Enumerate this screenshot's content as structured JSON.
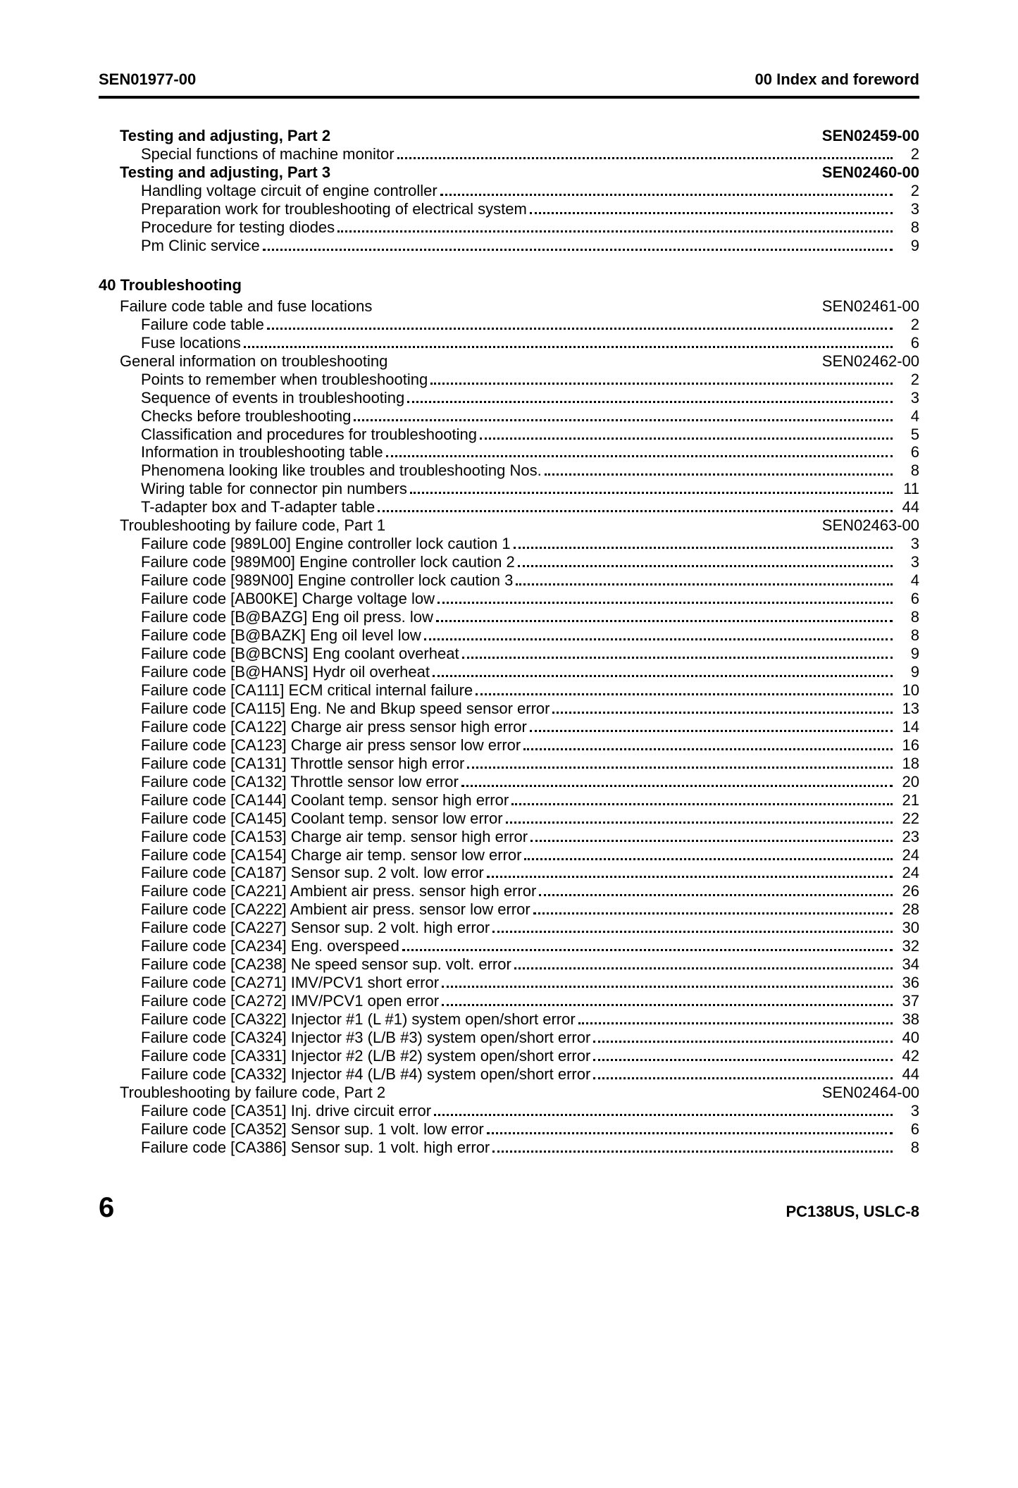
{
  "header": {
    "left": "SEN01977-00",
    "right": "00 Index and foreword"
  },
  "footer": {
    "page": "6",
    "model": "PC138US, USLC-8"
  },
  "sections": [
    {
      "title": "Testing and adjusting, Part 2",
      "code": "SEN02459-00",
      "indent": 1,
      "bold": true,
      "items": [
        {
          "label": "Special functions of machine monitor",
          "page": "2"
        }
      ]
    },
    {
      "title": "Testing and adjusting, Part 3",
      "code": "SEN02460-00",
      "indent": 1,
      "bold": true,
      "items": [
        {
          "label": "Handling voltage circuit of engine controller",
          "page": "2"
        },
        {
          "label": "Preparation work for troubleshooting of electrical system",
          "page": "3"
        },
        {
          "label": "Procedure for testing diodes",
          "page": "8"
        },
        {
          "label": "Pm Clinic service",
          "page": "9"
        }
      ]
    },
    {
      "chapter": "40 Troubleshooting"
    },
    {
      "title": "Failure code table and fuse locations",
      "code": "SEN02461-00",
      "indent": 1,
      "bold": false,
      "items": [
        {
          "label": "Failure code table",
          "page": "2"
        },
        {
          "label": "Fuse locations",
          "page": "6"
        }
      ]
    },
    {
      "title": "General information on troubleshooting",
      "code": "SEN02462-00",
      "indent": 1,
      "bold": false,
      "items": [
        {
          "label": "Points to remember when troubleshooting",
          "page": "2"
        },
        {
          "label": "Sequence of events in troubleshooting",
          "page": "3"
        },
        {
          "label": "Checks before troubleshooting",
          "page": "4"
        },
        {
          "label": "Classification and procedures for troubleshooting",
          "page": "5"
        },
        {
          "label": "Information in troubleshooting table",
          "page": "6"
        },
        {
          "label": "Phenomena looking like troubles and troubleshooting Nos.",
          "page": "8"
        },
        {
          "label": "Wiring table for connector pin numbers",
          "page": "11"
        },
        {
          "label": "T-adapter box and T-adapter table",
          "page": "44"
        }
      ]
    },
    {
      "title": "Troubleshooting by failure code, Part 1",
      "code": "SEN02463-00",
      "indent": 1,
      "bold": false,
      "items": [
        {
          "label": "Failure code [989L00] Engine controller lock caution 1",
          "page": "3"
        },
        {
          "label": "Failure code [989M00] Engine controller lock caution 2",
          "page": "3"
        },
        {
          "label": "Failure code [989N00] Engine controller lock caution 3",
          "page": "4"
        },
        {
          "label": "Failure code [AB00KE] Charge voltage low",
          "page": "6"
        },
        {
          "label": "Failure code [B@BAZG] Eng oil press. low",
          "page": "8"
        },
        {
          "label": "Failure code [B@BAZK] Eng oil level low",
          "page": "8"
        },
        {
          "label": "Failure code [B@BCNS] Eng coolant overheat",
          "page": "9"
        },
        {
          "label": "Failure code [B@HANS] Hydr oil overheat",
          "page": "9"
        },
        {
          "label": "Failure code [CA111] ECM critical internal failure",
          "page": "10"
        },
        {
          "label": "Failure code [CA115] Eng. Ne and Bkup speed sensor error",
          "page": "13"
        },
        {
          "label": "Failure code [CA122] Charge air press sensor high error",
          "page": "14"
        },
        {
          "label": "Failure code [CA123] Charge air press sensor low error",
          "page": "16"
        },
        {
          "label": "Failure code [CA131] Throttle sensor high error",
          "page": "18"
        },
        {
          "label": "Failure code [CA132] Throttle sensor low error",
          "page": "20"
        },
        {
          "label": "Failure code [CA144] Coolant temp. sensor high error",
          "page": "21"
        },
        {
          "label": "Failure code [CA145] Coolant temp. sensor low error",
          "page": "22"
        },
        {
          "label": "Failure code [CA153] Charge air temp. sensor high error",
          "page": "23"
        },
        {
          "label": "Failure code [CA154] Charge air temp. sensor low error",
          "page": "24"
        },
        {
          "label": "Failure code [CA187] Sensor sup. 2 volt. low error",
          "page": "24"
        },
        {
          "label": "Failure code [CA221] Ambient air press. sensor high error",
          "page": "26"
        },
        {
          "label": "Failure code [CA222] Ambient air press. sensor low error",
          "page": "28"
        },
        {
          "label": "Failure code [CA227] Sensor sup. 2 volt. high error",
          "page": "30"
        },
        {
          "label": "Failure code [CA234] Eng. overspeed",
          "page": "32"
        },
        {
          "label": "Failure code [CA238] Ne speed sensor sup. volt. error",
          "page": "34"
        },
        {
          "label": "Failure code [CA271] IMV/PCV1 short error",
          "page": "36"
        },
        {
          "label": "Failure code [CA272] IMV/PCV1 open error",
          "page": "37"
        },
        {
          "label": "Failure code [CA322] Injector #1 (L #1) system open/short error",
          "page": "38"
        },
        {
          "label": "Failure code [CA324] Injector #3 (L/B #3) system open/short error",
          "page": "40"
        },
        {
          "label": "Failure code [CA331] Injector #2 (L/B #2) system open/short error",
          "page": "42"
        },
        {
          "label": "Failure code [CA332] Injector #4 (L/B #4) system open/short error",
          "page": "44"
        }
      ]
    },
    {
      "title": "Troubleshooting by failure code, Part 2",
      "code": "SEN02464-00",
      "indent": 1,
      "bold": false,
      "items": [
        {
          "label": "Failure code [CA351] Inj. drive circuit error",
          "page": "3"
        },
        {
          "label": "Failure code [CA352] Sensor sup. 1 volt. low error",
          "page": "6"
        },
        {
          "label": "Failure code [CA386] Sensor sup. 1 volt. high error",
          "page": "8"
        }
      ]
    }
  ]
}
